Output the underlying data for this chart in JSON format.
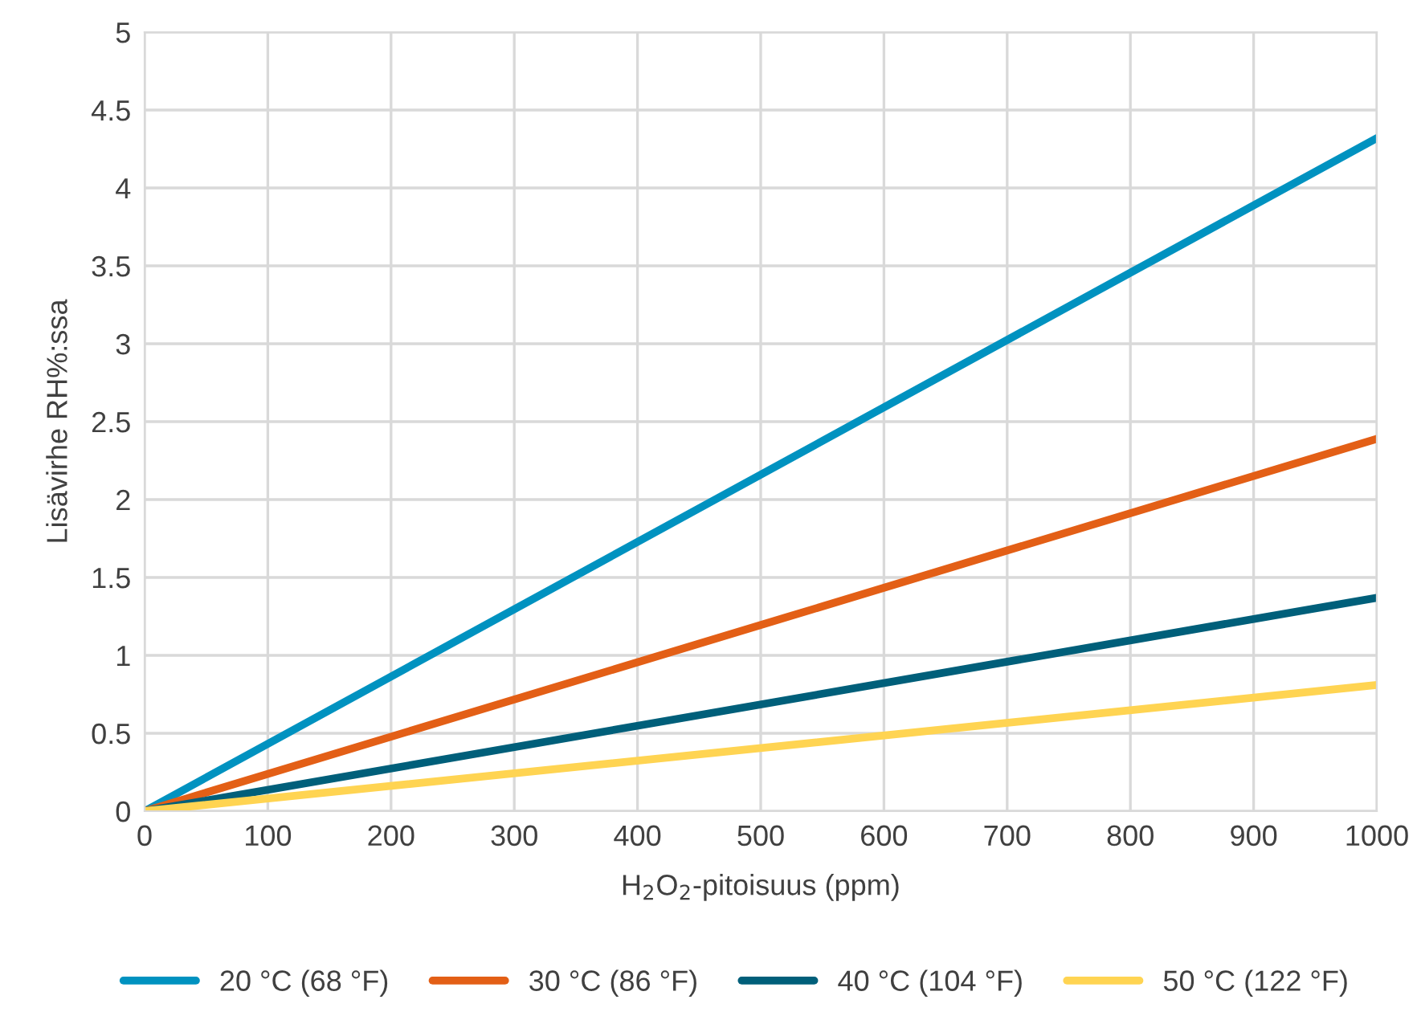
{
  "chart_data": {
    "type": "line",
    "xlabel": "H$_{2}$O$_{2}$-pitoisuus (ppm)",
    "ylabel": "Lisävirhe RH%:ssa",
    "x": [
      0,
      1000
    ],
    "series": [
      {
        "name": "20 °C (68 °F)",
        "color": "#0092c0",
        "values": [
          0,
          4.32
        ]
      },
      {
        "name": "30 °C (86 °F)",
        "color": "#e35f16",
        "values": [
          0,
          2.39
        ]
      },
      {
        "name": "40 °C (104 °F)",
        "color": "#005f7a",
        "values": [
          0,
          1.37
        ]
      },
      {
        "name": "50 °C (122 °F)",
        "color": "#ffd452",
        "values": [
          0,
          0.81
        ]
      }
    ],
    "xlim": [
      0,
      1000
    ],
    "xticks": [
      0,
      100,
      200,
      300,
      400,
      500,
      600,
      700,
      800,
      900,
      1000
    ],
    "ylim": [
      0,
      5
    ],
    "yticks": [
      0,
      0.5,
      1,
      1.5,
      2,
      2.5,
      3,
      3.5,
      4,
      4.5,
      5
    ],
    "grid": true,
    "legend": "bottom",
    "line_style": "solid",
    "marker": "none"
  }
}
